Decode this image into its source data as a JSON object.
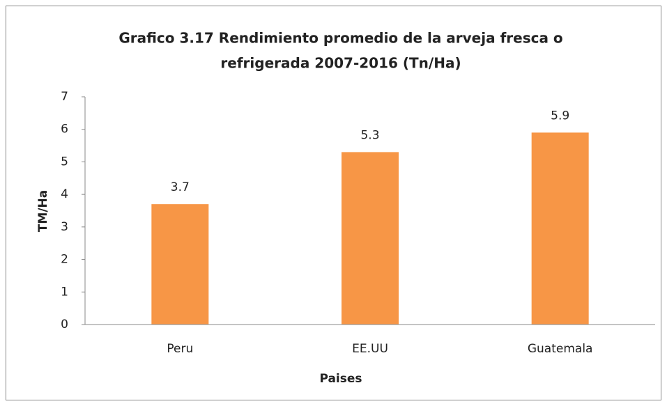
{
  "chart_data": {
    "type": "bar",
    "title": [
      "Grafico 3.17 Rendimiento promedio de la arveja fresca o",
      "refrigerada 2007-2016 (Tn/Ha)"
    ],
    "x_label": "Paises",
    "y_label": "TM/Ha",
    "categories": [
      "Peru",
      "EE.UU",
      "Guatemala"
    ],
    "values": [
      3.7,
      5.3,
      5.9
    ],
    "color": "#f79646",
    "ylim": [
      0,
      7
    ],
    "yticks": [
      0,
      1,
      2,
      3,
      4,
      5,
      6,
      7
    ],
    "grid": false
  }
}
